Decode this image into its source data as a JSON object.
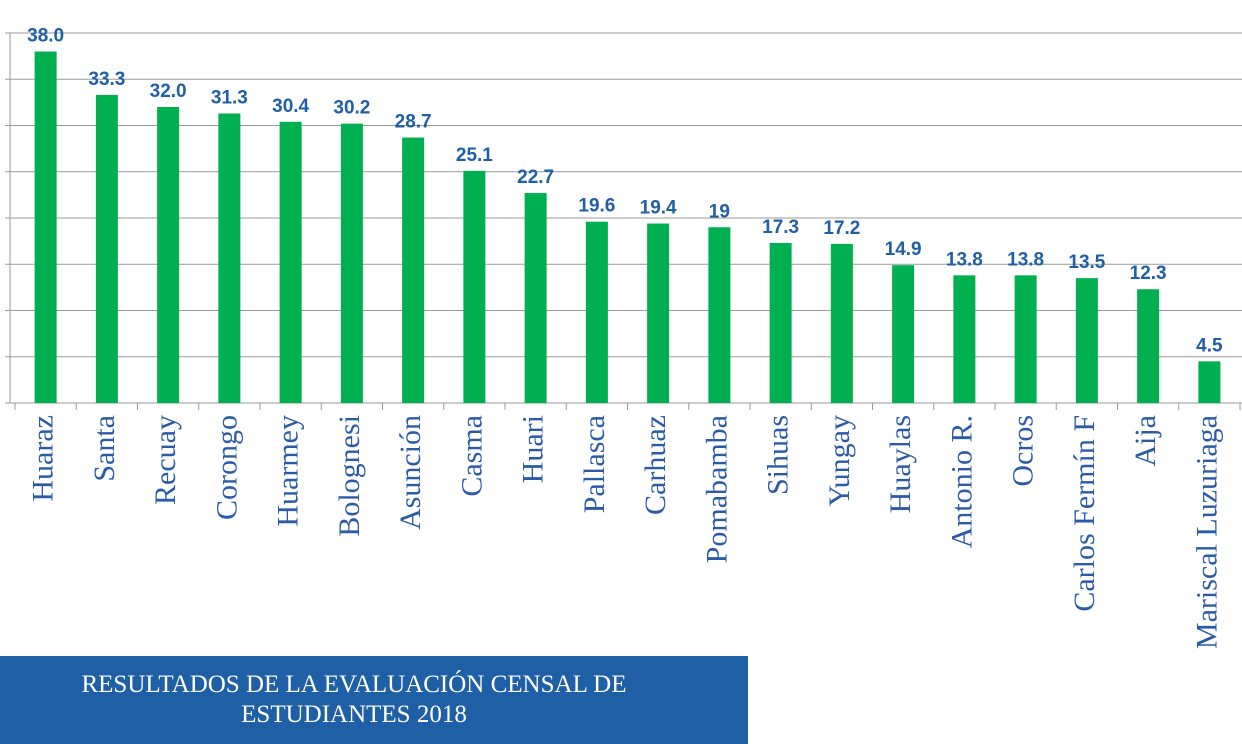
{
  "chart_data": {
    "type": "bar",
    "title": "RESULTADOS DE LA EVALUACIÓN CENSAL DE ESTUDIANTES 2018",
    "categories": [
      "Huaraz",
      "Santa",
      "Recuay",
      "Corongo",
      "Huarmey",
      "Bolognesi",
      "Asunción",
      "Casma",
      "Huari",
      "Pallasca",
      "Carhuaz",
      "Pomabamba",
      "Sihuas",
      "Yungay",
      "Huaylas",
      "Antonio R.",
      "Ocros",
      "Carlos Fermín F",
      "Aija",
      "Mariscal Luzuriaga"
    ],
    "values": [
      38.0,
      33.3,
      32.0,
      31.3,
      30.4,
      30.2,
      28.7,
      25.1,
      22.7,
      19.6,
      19.4,
      19,
      17.3,
      17.2,
      14.9,
      13.8,
      13.8,
      13.5,
      12.3,
      4.5
    ],
    "value_labels": [
      "38.0",
      "33.3",
      "32.0",
      "31.3",
      "30.4",
      "30.2",
      "28.7",
      "25.1",
      "22.7",
      "19.6",
      "19.4",
      "19",
      "17.3",
      "17.2",
      "14.9",
      "13.8",
      "13.8",
      "13.5",
      "12.3",
      "4.5"
    ],
    "color": "#00b050",
    "ylim": [
      0,
      40
    ],
    "yticks": [
      0,
      5,
      10,
      15,
      20,
      25,
      30,
      35,
      40
    ],
    "grid": true
  }
}
